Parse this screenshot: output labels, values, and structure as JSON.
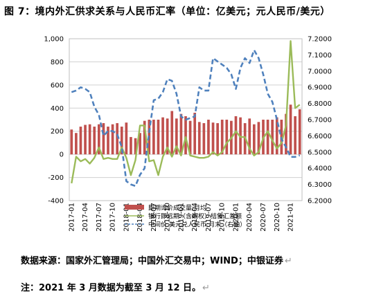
{
  "figure": {
    "title": "图 7：境内外汇供求关系与人民币汇率（单位：亿美元；元人民币/美元）",
    "source": "数据来源：国家外汇管理局；中国外汇交易中；WIND；中银证券",
    "note": "注：2021 年 3 月数据为截至 3 月 12 日。",
    "para_mark": "↵"
  },
  "chart_data": {
    "type": "bar+line",
    "title": "",
    "xlabel": "",
    "ylabel": "",
    "y_left_lim": [
      -400,
      1000
    ],
    "y_left_ticks": [
      "-400",
      "-200",
      "0",
      "200",
      "400",
      "600",
      "800",
      "1,000"
    ],
    "y_right_lim": [
      6.2,
      7.2
    ],
    "y_right_ticks": [
      "6.2000",
      "6.3000",
      "6.4000",
      "6.5000",
      "6.6000",
      "6.7000",
      "6.8000",
      "6.9000",
      "7.0000",
      "7.1000",
      "7.2000"
    ],
    "x_tick_labels": [
      "2017-01",
      "2017-04",
      "2017-07",
      "2017-10",
      "2018-01",
      "2018-04",
      "2018-07",
      "2018-10",
      "2019-01",
      "2019-04",
      "2019-07",
      "2019-10",
      "2020-01",
      "2020-04",
      "2020-07",
      "2020-10",
      "2021-01"
    ],
    "x": [
      "2017-01",
      "2017-02",
      "2017-03",
      "2017-04",
      "2017-05",
      "2017-06",
      "2017-07",
      "2017-08",
      "2017-09",
      "2017-10",
      "2017-11",
      "2017-12",
      "2018-01",
      "2018-02",
      "2018-03",
      "2018-04",
      "2018-05",
      "2018-06",
      "2018-07",
      "2018-08",
      "2018-09",
      "2018-10",
      "2018-11",
      "2018-12",
      "2019-01",
      "2019-02",
      "2019-03",
      "2019-04",
      "2019-05",
      "2019-06",
      "2019-07",
      "2019-08",
      "2019-09",
      "2019-10",
      "2019-11",
      "2019-12",
      "2020-01",
      "2020-02",
      "2020-03",
      "2020-04",
      "2020-05",
      "2020-06",
      "2020-07",
      "2020-08",
      "2020-09",
      "2020-10",
      "2020-11",
      "2020-12",
      "2021-01",
      "2021-02",
      "2021-03"
    ],
    "grid": "horizontal",
    "legend_position": "bottom-right",
    "series": [
      {
        "name": "即期询价成交量:月均",
        "kind": "bar",
        "axis": "left",
        "color": "#c0504d",
        "values": [
          215,
          185,
          240,
          255,
          260,
          240,
          260,
          270,
          240,
          260,
          270,
          240,
          275,
          150,
          140,
          185,
          290,
          300,
          300,
          300,
          320,
          310,
          375,
          310,
          350,
          330,
          290,
          360,
          280,
          270,
          300,
          275,
          270,
          300,
          300,
          290,
          330,
          320,
          270,
          310,
          260,
          280,
          300,
          300,
          300,
          320,
          300,
          350,
          430,
          330,
          390
        ]
      },
      {
        "name": "银行即远期（含期权）结售汇差额",
        "kind": "line",
        "axis": "left",
        "color": "#9bbb59",
        "values": [
          -250,
          -20,
          -60,
          -40,
          -80,
          -30,
          60,
          -40,
          -30,
          -40,
          -40,
          60,
          -30,
          -180,
          -50,
          250,
          250,
          -60,
          -50,
          -180,
          -20,
          60,
          -20,
          70,
          -10,
          150,
          -10,
          -20,
          -30,
          -30,
          -20,
          20,
          -10,
          20,
          100,
          140,
          200,
          150,
          150,
          50,
          -10,
          20,
          140,
          200,
          120,
          50,
          100,
          250,
          980,
          400,
          430
        ]
      },
      {
        "name": "中间价:美元兑人民币:月末（右轴）",
        "kind": "line",
        "axis": "right",
        "dash": true,
        "color": "#4f81bd",
        "values": [
          6.87,
          6.88,
          6.9,
          6.89,
          6.87,
          6.78,
          6.73,
          6.6,
          6.63,
          6.63,
          6.61,
          6.53,
          6.32,
          6.3,
          6.29,
          6.36,
          6.4,
          6.62,
          6.82,
          6.83,
          6.87,
          6.95,
          6.94,
          6.86,
          6.72,
          6.7,
          6.71,
          6.72,
          6.9,
          6.88,
          6.88,
          7.08,
          7.06,
          7.04,
          7.02,
          6.98,
          6.89,
          7.02,
          7.08,
          7.05,
          7.13,
          7.08,
          6.98,
          6.86,
          6.81,
          6.7,
          6.58,
          6.53,
          6.47,
          6.47,
          6.48
        ]
      }
    ]
  }
}
